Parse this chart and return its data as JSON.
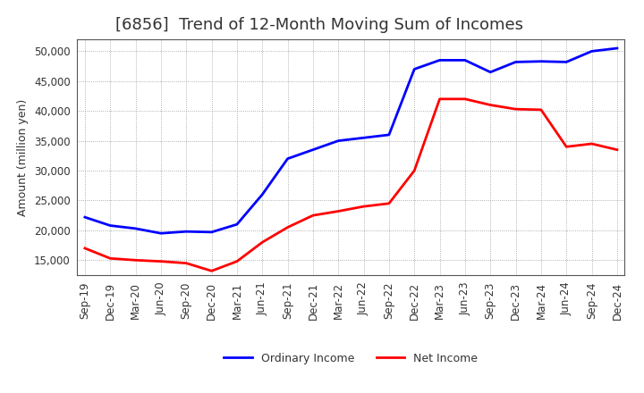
{
  "title": "[6856]  Trend of 12-Month Moving Sum of Incomes",
  "ylabel": "Amount (million yen)",
  "x_labels": [
    "Sep-19",
    "Dec-19",
    "Mar-20",
    "Jun-20",
    "Sep-20",
    "Dec-20",
    "Mar-21",
    "Jun-21",
    "Sep-21",
    "Dec-21",
    "Mar-22",
    "Jun-22",
    "Sep-22",
    "Dec-22",
    "Mar-23",
    "Jun-23",
    "Sep-23",
    "Dec-23",
    "Mar-24",
    "Jun-24",
    "Sep-24",
    "Dec-24"
  ],
  "ordinary_income": [
    22200,
    20800,
    20300,
    19500,
    19800,
    19700,
    21000,
    26000,
    32000,
    33500,
    35000,
    35500,
    36000,
    47000,
    48500,
    48500,
    46500,
    48200,
    48300,
    48200,
    50000,
    50500
  ],
  "net_income": [
    17000,
    15300,
    15000,
    14800,
    14500,
    13200,
    14800,
    18000,
    20500,
    22500,
    23200,
    24000,
    24500,
    30000,
    42000,
    42000,
    41000,
    40300,
    40200,
    34000,
    34500,
    33500
  ],
  "ordinary_color": "#0000FF",
  "net_color": "#FF0000",
  "background_color": "#FFFFFF",
  "grid_color": "#999999",
  "ylim_min": 12500,
  "ylim_max": 52000,
  "yticks": [
    15000,
    20000,
    25000,
    30000,
    35000,
    40000,
    45000,
    50000
  ],
  "legend_labels": [
    "Ordinary Income",
    "Net Income"
  ],
  "title_fontsize": 13,
  "axis_fontsize": 8.5,
  "label_fontsize": 9,
  "title_color": "#333333"
}
